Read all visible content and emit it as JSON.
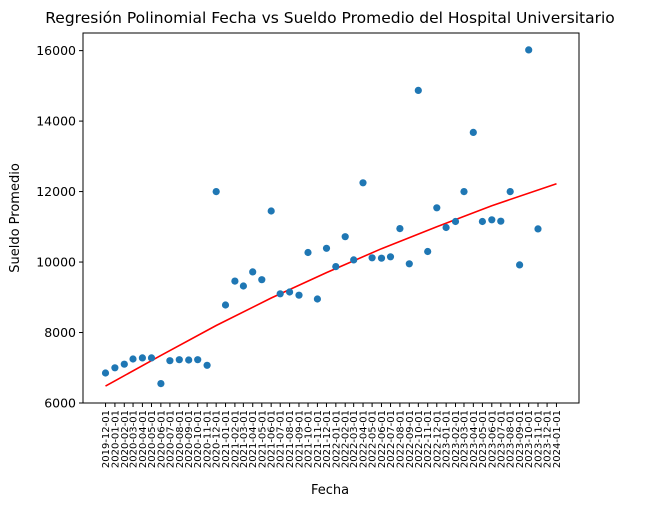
{
  "chart_data": {
    "type": "scatter",
    "title": "Regresión Polinomial Fecha vs Sueldo Promedio del Hospital Universitario",
    "xlabel": "Fecha",
    "ylabel": "Sueldo Promedio",
    "ylim": [
      6000,
      16500
    ],
    "yticks": [
      6000,
      8000,
      10000,
      12000,
      14000,
      16000
    ],
    "grid": false,
    "colors": {
      "points": "#1f77b4",
      "regression": "#ff0000"
    },
    "x": [
      "2019-12-01",
      "2020-01-01",
      "2020-02-01",
      "2020-03-01",
      "2020-04-01",
      "2020-05-01",
      "2020-06-01",
      "2020-07-01",
      "2020-08-01",
      "2020-09-01",
      "2020-10-01",
      "2020-11-01",
      "2020-12-01",
      "2021-01-01",
      "2021-02-01",
      "2021-03-01",
      "2021-04-01",
      "2021-05-01",
      "2021-06-01",
      "2021-07-01",
      "2021-08-01",
      "2021-09-01",
      "2021-10-01",
      "2021-11-01",
      "2021-12-01",
      "2022-01-01",
      "2022-02-01",
      "2022-03-01",
      "2022-04-01",
      "2022-05-01",
      "2022-06-01",
      "2022-07-01",
      "2022-08-01",
      "2022-09-01",
      "2022-10-01",
      "2022-11-01",
      "2022-12-01",
      "2023-01-01",
      "2023-02-01",
      "2023-03-01",
      "2023-04-01",
      "2023-05-01",
      "2023-06-01",
      "2023-07-01",
      "2023-08-01",
      "2023-09-01",
      "2023-10-01",
      "2023-11-01",
      "2023-12-01",
      "2024-01-01"
    ],
    "xtick_labels": [
      "2019-12-01",
      "2020-01-01",
      "2020-02-01",
      "2020-03-01",
      "2020-04-01",
      "2020-05-01",
      "2020-06-01",
      "2020-07-01",
      "2020-08-01",
      "2020-09-01",
      "2020-10-01",
      "2020-11-01",
      "2020-12-01",
      "2021-01-01",
      "2021-02-01",
      "2021-03-01",
      "2021-04-01",
      "2021-05-01",
      "2021-06-01",
      "2021-07-01",
      "2021-08-01",
      "2021-09-01",
      "2021-10-01",
      "2021-11-01",
      "2021-12-01",
      "2022-01-01",
      "2022-02-01",
      "2022-03-01",
      "2022-04-01",
      "2022-05-01",
      "2022-06-01",
      "2022-07-01",
      "2022-08-01",
      "2022-09-01",
      "2022-10-01",
      "2022-11-01",
      "2022-12-01",
      "2023-01-01",
      "2023-02-01",
      "2023-03-01",
      "2023-04-01",
      "2023-05-01",
      "2023-06-01",
      "2023-07-01",
      "2023-08-01",
      "2023-09-01",
      "2023-10-01",
      "2023-11-01",
      "2023-12-01",
      "2024-01-01"
    ],
    "y": [
      6850,
      7000,
      7100,
      7250,
      7280,
      7280,
      6550,
      7200,
      7230,
      7220,
      7230,
      7070,
      12000,
      8780,
      9460,
      9320,
      9720,
      9500,
      11450,
      9100,
      9150,
      9060,
      10270,
      8950,
      10390,
      9870,
      10720,
      10060,
      12250,
      10120,
      10110,
      10150,
      10950,
      9950,
      14870,
      10300,
      11540,
      10980,
      11150,
      12000,
      13680,
      11150,
      11200,
      11160,
      12000,
      9920,
      16020,
      10940,
      null,
      null
    ],
    "regression": [
      {
        "x": "2019-12-01",
        "y": 6480
      },
      {
        "x": "2020-06-01",
        "y": 7350
      },
      {
        "x": "2020-12-01",
        "y": 8200
      },
      {
        "x": "2021-06-01",
        "y": 8980
      },
      {
        "x": "2021-12-01",
        "y": 9700
      },
      {
        "x": "2022-06-01",
        "y": 10380
      },
      {
        "x": "2022-12-01",
        "y": 11000
      },
      {
        "x": "2023-06-01",
        "y": 11600
      },
      {
        "x": "2024-01-01",
        "y": 12220
      }
    ]
  }
}
